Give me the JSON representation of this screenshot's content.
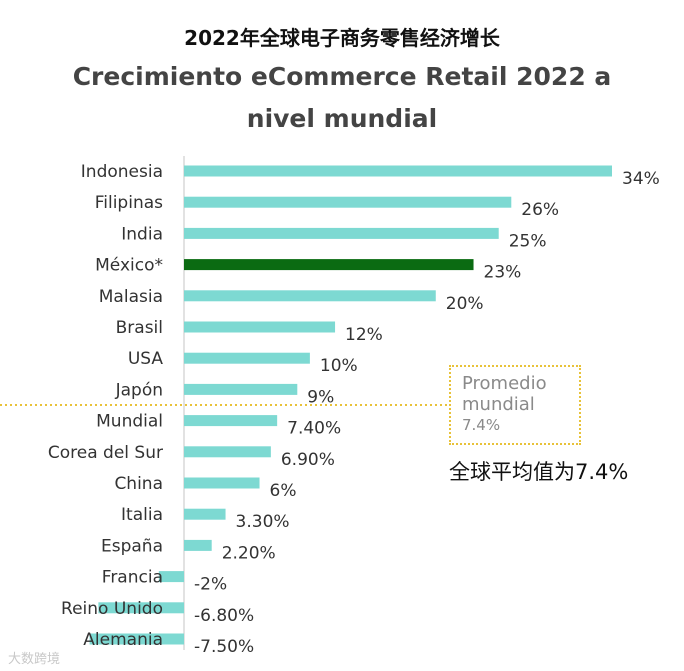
{
  "chart_data": {
    "type": "bar",
    "orientation": "horizontal",
    "title_zh": "2022年全球电子商务零售经济增长",
    "title_es_line1": "Crecimiento eCommerce Retail 2022 a",
    "title_es_line2": "nivel mundial",
    "categories": [
      "Indonesia",
      "Filipinas",
      "India",
      "México*",
      "Malasia",
      "Brasil",
      "USA",
      "Japón",
      "Mundial",
      "Corea del Sur",
      "China",
      "Italia",
      "España",
      "Francia",
      "Reino Unido",
      "Alemania"
    ],
    "values": [
      34,
      26,
      25,
      23,
      20,
      12,
      10,
      9,
      7.4,
      6.9,
      6,
      3.3,
      2.2,
      -2,
      -6.8,
      -7.5
    ],
    "value_labels": [
      "34%",
      "26%",
      "25%",
      "23%",
      "20%",
      "12%",
      "10%",
      "9%",
      "7.40%",
      "6.90%",
      "6%",
      "3.30%",
      "2.20%",
      "-2%",
      "-6.80%",
      "-7.50%"
    ],
    "highlight_category": "México*",
    "xlim": [
      -7.5,
      34
    ],
    "colors": {
      "bar": "#7dd9d2",
      "highlight": "#0b6b12",
      "average_line": "#e8c23a",
      "axis": "#d9d9d9"
    },
    "average": {
      "value": 7.4,
      "label_es": "Promedio mundial",
      "value_text": "7.4%",
      "label_zh": "全球平均值为7.4%"
    }
  },
  "watermark": "大数跨境"
}
